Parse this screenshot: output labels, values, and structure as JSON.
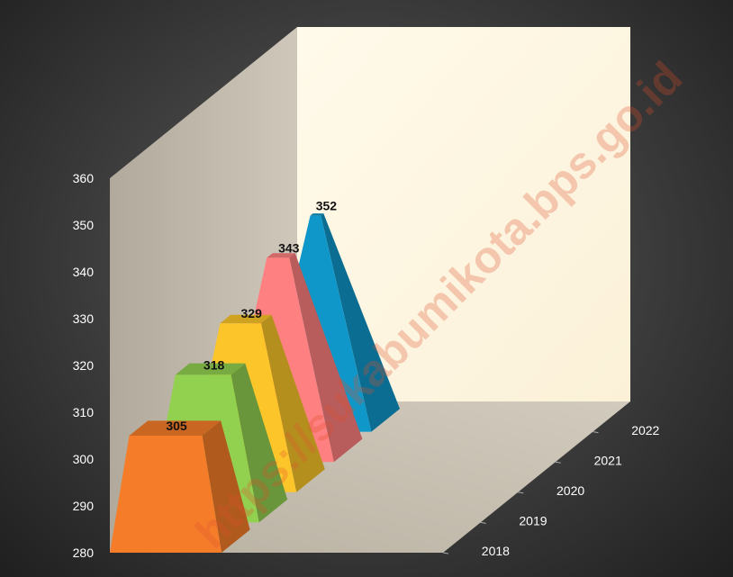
{
  "chart_data": {
    "type": "bar",
    "categories": [
      "2018",
      "2019",
      "2020",
      "2021",
      "2022"
    ],
    "values": [
      305,
      318,
      329,
      343,
      352
    ],
    "ylim": [
      280,
      360
    ],
    "yticks": [
      "280",
      "290",
      "300",
      "310",
      "320",
      "330",
      "340",
      "350",
      "360"
    ],
    "data_labels": [
      "305",
      "318",
      "329",
      "343",
      "352"
    ],
    "colors": [
      "#f57d2a",
      "#92d050",
      "#fcc62a",
      "#ff8080",
      "#0f97c9"
    ],
    "grid": false,
    "legend": "none",
    "watermark": "https://sukabumikota.bps.go.id"
  }
}
